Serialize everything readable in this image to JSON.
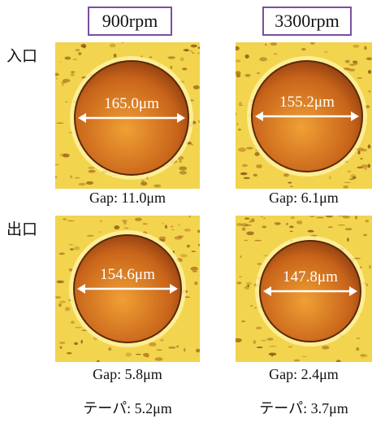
{
  "columns": [
    {
      "header": "900rpm",
      "taper": "テーパ: 5.2μm"
    },
    {
      "header": "3300rpm",
      "taper": "テーパ: 3.7μm"
    }
  ],
  "rows": [
    {
      "label": "入口",
      "cells": [
        {
          "diameter": "165.0μm",
          "gap": "Gap: 11.0μm"
        },
        {
          "diameter": "155.2μm",
          "gap": "Gap: 6.1μm"
        }
      ]
    },
    {
      "label": "出口",
      "cells": [
        {
          "diameter": "154.6μm",
          "gap": "Gap: 5.8μm"
        },
        {
          "diameter": "147.8μm",
          "gap": "Gap: 2.4μm"
        }
      ]
    }
  ]
}
